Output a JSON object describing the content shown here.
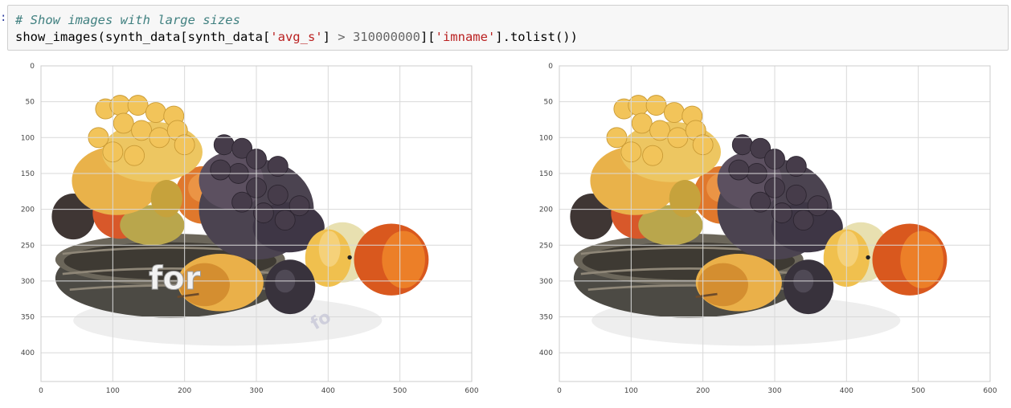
{
  "cell": {
    "prompt": ":",
    "code": {
      "comment": "# Show images with large sizes",
      "p1": "show_images(synth_data[synth_data[",
      "s1": "'avg_s'",
      "p2": "] ",
      "op": ">",
      "p3": " ",
      "num": "310000000",
      "p4": "][",
      "s2": "'imname'",
      "p5": "].tolist())"
    }
  },
  "plots": [
    {
      "image": "fruit-basket-image",
      "overlay_text": "for",
      "overlay_text_small": "fo",
      "x_ticks": [
        "0",
        "100",
        "200",
        "300",
        "400",
        "500",
        "600"
      ],
      "y_ticks": [
        "0",
        "50",
        "100",
        "150",
        "200",
        "250",
        "300",
        "350",
        "400"
      ]
    },
    {
      "image": "fruit-basket-image",
      "x_ticks": [
        "0",
        "100",
        "200",
        "300",
        "400",
        "500",
        "600"
      ],
      "y_ticks": [
        "0",
        "50",
        "100",
        "150",
        "200",
        "250",
        "300",
        "350",
        "400"
      ]
    }
  ],
  "colors": {
    "grid": "#d9d9d9",
    "axes": "#cccccc",
    "cell_background": "#f7f7f7",
    "cell_border": "#cfcfcf"
  }
}
